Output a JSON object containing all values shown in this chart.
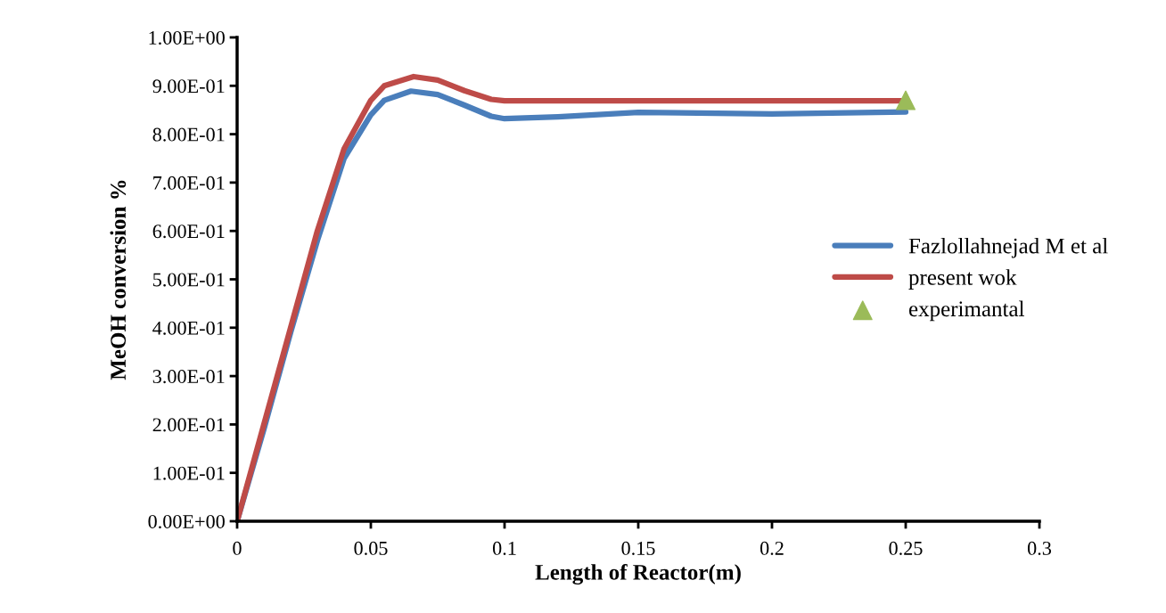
{
  "chart_data": {
    "type": "line",
    "xlabel": "Length of Reactor(m)",
    "ylabel": "MeOH conversion %",
    "xlim": [
      0,
      0.3
    ],
    "xticks": [
      0,
      0.05,
      0.1,
      0.15,
      0.2,
      0.25,
      0.3
    ],
    "ylim": [
      0,
      1.0
    ],
    "yticks": [
      {
        "value": 0,
        "label": "0.00E+00"
      },
      {
        "value": 0.1,
        "label": "1.00E-01"
      },
      {
        "value": 0.2,
        "label": "2.00E-01"
      },
      {
        "value": 0.3,
        "label": "3.00E-01"
      },
      {
        "value": 0.4,
        "label": "4.00E-01"
      },
      {
        "value": 0.5,
        "label": "5.00E-01"
      },
      {
        "value": 0.6,
        "label": "6.00E-01"
      },
      {
        "value": 0.7,
        "label": "7.00E-01"
      },
      {
        "value": 0.8,
        "label": "8.00E-01"
      },
      {
        "value": 0.9,
        "label": "9.00E-01"
      },
      {
        "value": 1.0,
        "label": "1.00E+00"
      }
    ],
    "grid": false,
    "legend": "right",
    "series": [
      {
        "name": "Fazlollahnejad M et al",
        "color": "#4a7ebb",
        "x": [
          0,
          0.01,
          0.02,
          0.03,
          0.04,
          0.05,
          0.055,
          0.065,
          0.075,
          0.085,
          0.095,
          0.1,
          0.12,
          0.15,
          0.2,
          0.25
        ],
        "values": [
          0,
          0.19,
          0.39,
          0.58,
          0.75,
          0.84,
          0.87,
          0.889,
          0.882,
          0.86,
          0.837,
          0.832,
          0.836,
          0.845,
          0.842,
          0.846
        ]
      },
      {
        "name": "present wok",
        "color": "#be4b48",
        "x": [
          0,
          0.01,
          0.02,
          0.03,
          0.04,
          0.05,
          0.055,
          0.066,
          0.075,
          0.085,
          0.095,
          0.1,
          0.15,
          0.2,
          0.25
        ],
        "values": [
          0,
          0.2,
          0.4,
          0.6,
          0.77,
          0.87,
          0.9,
          0.919,
          0.912,
          0.89,
          0.872,
          0.869,
          0.869,
          0.869,
          0.869
        ]
      },
      {
        "name": "experimantal",
        "type": "scatter",
        "marker": "triangle",
        "color": "#9bbb59",
        "x": [
          0.25
        ],
        "values": [
          0.87
        ]
      }
    ]
  }
}
